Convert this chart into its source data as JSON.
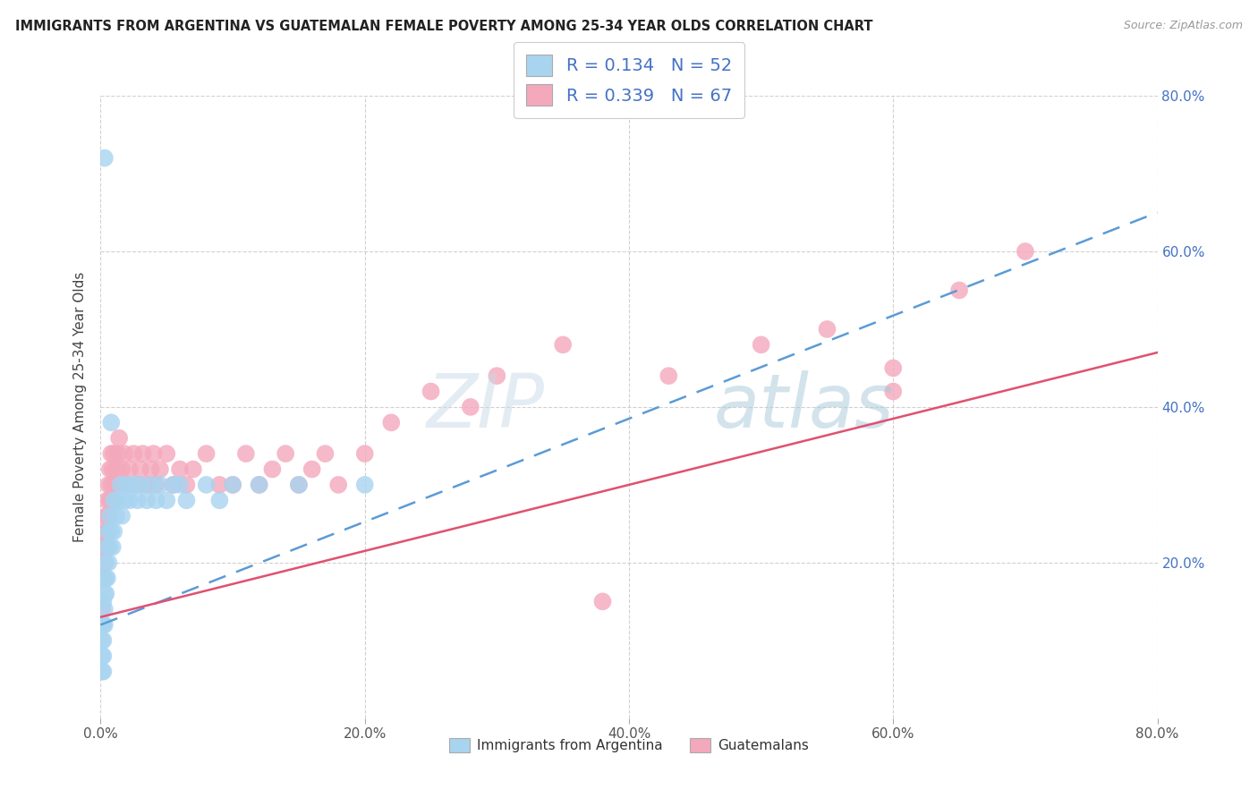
{
  "title": "IMMIGRANTS FROM ARGENTINA VS GUATEMALAN FEMALE POVERTY AMONG 25-34 YEAR OLDS CORRELATION CHART",
  "source": "Source: ZipAtlas.com",
  "ylabel": "Female Poverty Among 25-34 Year Olds",
  "r_argentina": 0.134,
  "n_argentina": 52,
  "r_guatemalan": 0.339,
  "n_guatemalan": 67,
  "color_argentina": "#A8D4F0",
  "color_guatemalan": "#F4A8BC",
  "color_argentina_line": "#5B9BD5",
  "color_guatemalan_line": "#E05070",
  "xlim": [
    0.0,
    0.8
  ],
  "ylim": [
    0.0,
    0.8
  ],
  "xticks": [
    0.0,
    0.2,
    0.4,
    0.6,
    0.8
  ],
  "yticks": [
    0.2,
    0.4,
    0.6,
    0.8
  ],
  "watermark_text": "ZIPatlas",
  "legend_r_labels": [
    "R = 0.134   N = 52",
    "R = 0.339   N = 67"
  ],
  "legend_series_labels": [
    "Immigrants from Argentina",
    "Guatemalans"
  ],
  "argentina_x": [
    0.001,
    0.001,
    0.001,
    0.001,
    0.002,
    0.002,
    0.002,
    0.002,
    0.002,
    0.003,
    0.003,
    0.003,
    0.003,
    0.004,
    0.004,
    0.004,
    0.005,
    0.005,
    0.006,
    0.006,
    0.007,
    0.007,
    0.008,
    0.009,
    0.01,
    0.01,
    0.012,
    0.013,
    0.015,
    0.016,
    0.018,
    0.02,
    0.022,
    0.025,
    0.028,
    0.03,
    0.035,
    0.038,
    0.042,
    0.045,
    0.05,
    0.055,
    0.06,
    0.065,
    0.08,
    0.09,
    0.1,
    0.12,
    0.15,
    0.2,
    0.008,
    0.003
  ],
  "argentina_y": [
    0.12,
    0.1,
    0.08,
    0.06,
    0.15,
    0.12,
    0.1,
    0.08,
    0.06,
    0.18,
    0.16,
    0.14,
    0.12,
    0.2,
    0.18,
    0.16,
    0.22,
    0.18,
    0.24,
    0.2,
    0.26,
    0.22,
    0.24,
    0.22,
    0.28,
    0.24,
    0.26,
    0.28,
    0.3,
    0.26,
    0.28,
    0.3,
    0.28,
    0.3,
    0.28,
    0.3,
    0.28,
    0.3,
    0.28,
    0.3,
    0.28,
    0.3,
    0.3,
    0.28,
    0.3,
    0.28,
    0.3,
    0.3,
    0.3,
    0.3,
    0.38,
    0.72
  ],
  "guatemalan_x": [
    0.001,
    0.001,
    0.002,
    0.002,
    0.003,
    0.003,
    0.004,
    0.004,
    0.005,
    0.005,
    0.006,
    0.006,
    0.007,
    0.007,
    0.008,
    0.008,
    0.009,
    0.01,
    0.01,
    0.011,
    0.012,
    0.013,
    0.014,
    0.015,
    0.016,
    0.018,
    0.02,
    0.022,
    0.025,
    0.028,
    0.03,
    0.032,
    0.035,
    0.038,
    0.04,
    0.042,
    0.045,
    0.05,
    0.055,
    0.06,
    0.065,
    0.07,
    0.08,
    0.09,
    0.1,
    0.11,
    0.12,
    0.13,
    0.14,
    0.15,
    0.16,
    0.17,
    0.18,
    0.2,
    0.22,
    0.25,
    0.28,
    0.3,
    0.35,
    0.38,
    0.43,
    0.5,
    0.55,
    0.6,
    0.65,
    0.7,
    0.6
  ],
  "guatemalan_y": [
    0.18,
    0.14,
    0.22,
    0.18,
    0.24,
    0.2,
    0.26,
    0.22,
    0.28,
    0.24,
    0.3,
    0.26,
    0.32,
    0.28,
    0.34,
    0.3,
    0.32,
    0.28,
    0.34,
    0.3,
    0.32,
    0.34,
    0.36,
    0.3,
    0.32,
    0.34,
    0.3,
    0.32,
    0.34,
    0.3,
    0.32,
    0.34,
    0.3,
    0.32,
    0.34,
    0.3,
    0.32,
    0.34,
    0.3,
    0.32,
    0.3,
    0.32,
    0.34,
    0.3,
    0.3,
    0.34,
    0.3,
    0.32,
    0.34,
    0.3,
    0.32,
    0.34,
    0.3,
    0.34,
    0.38,
    0.42,
    0.4,
    0.44,
    0.48,
    0.15,
    0.44,
    0.48,
    0.5,
    0.45,
    0.55,
    0.6,
    0.42
  ]
}
